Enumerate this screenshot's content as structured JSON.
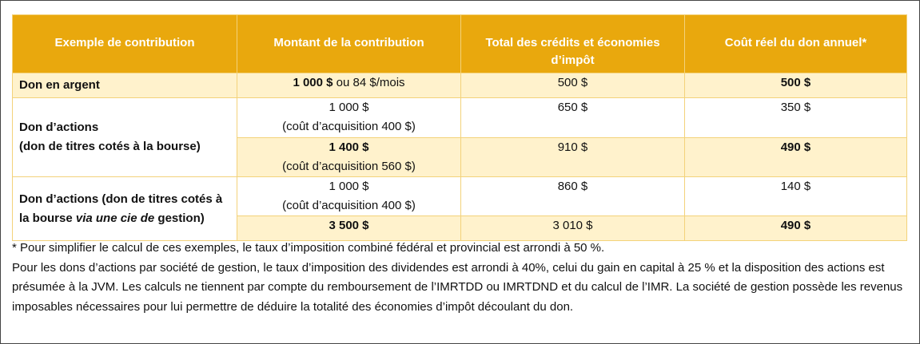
{
  "table": {
    "header": [
      "Exemple de contribution",
      "Montant de la contribution",
      "Total des crédits et économies d’impôt",
      "Coût réel du don annuel*"
    ],
    "rows": [
      {
        "label": [
          "Don en argent"
        ],
        "amount": [
          "1 000 $",
          " ou 84 $/mois"
        ],
        "credits": "500 $",
        "cost": "500 $"
      },
      {
        "label": [
          "Don d’actions",
          "(don de titres cotés à la bourse)"
        ],
        "amount": [
          "1 000 $",
          "(coût d’acquisition 400 $)"
        ],
        "credits": "650 $",
        "cost": "350 $"
      },
      {
        "amount": [
          "1 400 $",
          "(coût d’acquisition 560 $)"
        ],
        "credits": "910 $",
        "cost": "490 $"
      },
      {
        "label": [
          "Don d’actions (don de titres cotés à la bourse ",
          "via une cie de",
          " gestion)"
        ],
        "amount": [
          "1 000 $",
          "(coût d’acquisition 400 $)"
        ],
        "credits": "860 $",
        "cost": "140 $"
      },
      {
        "amount": [
          "3 500 $"
        ],
        "credits": "3 010 $",
        "cost": "490 $"
      }
    ]
  },
  "notes": [
    "* Pour simplifier le calcul de ces exemples, le taux d’imposition combiné fédéral et provincial est arrondi à 50 %.",
    "Pour les dons d’actions par société de gestion, le taux d’imposition des dividendes est arrondi à 40%, celui du gain en capital à 25 % et la disposition des actions est présumée à la JVM. Les calculs ne tiennent par compte du remboursement de l’IMRTDD ou IMRTDND et du calcul de l’IMR. La société de gestion possède les revenus imposables nécessaires pour lui permettre de déduire la totalité des économies d’impôt découlant du don."
  ]
}
